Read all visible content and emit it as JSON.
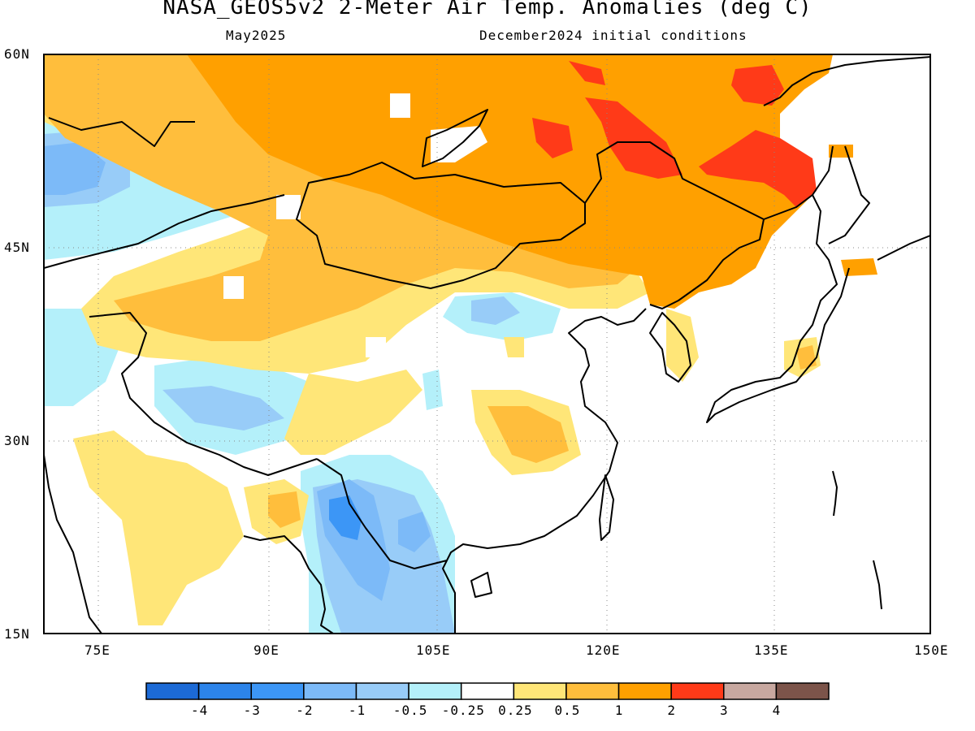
{
  "header": {
    "title": "NASA_GEOS5v2 2-Meter Air Temp. Anomalies (deg C)",
    "subtitle_left": "May2025",
    "subtitle_right": "December2024 initial conditions"
  },
  "map": {
    "lat_range": [
      15,
      60
    ],
    "lon_range": [
      68,
      150
    ],
    "lat_ticks": [
      "60N",
      "45N",
      "30N",
      "15N"
    ],
    "lon_ticks": [
      "75E",
      "90E",
      "105E",
      "120E",
      "135E",
      "150E"
    ],
    "gridlines": "dotted"
  },
  "colorbar": {
    "colors": [
      "#1c6ad6",
      "#2c84ea",
      "#3c96f6",
      "#7cbaf8",
      "#98ccf8",
      "#b4f0fa",
      "#ffffff",
      "#ffe678",
      "#ffbe3c",
      "#ffa000",
      "#ff3a18",
      "#c8a8a0",
      "#7c544a"
    ],
    "labels": [
      "-4",
      "-3",
      "-2",
      "-1",
      "-0.5",
      "-0.25",
      "0.25",
      "0.5",
      "1",
      "2",
      "3",
      "4"
    ]
  }
}
